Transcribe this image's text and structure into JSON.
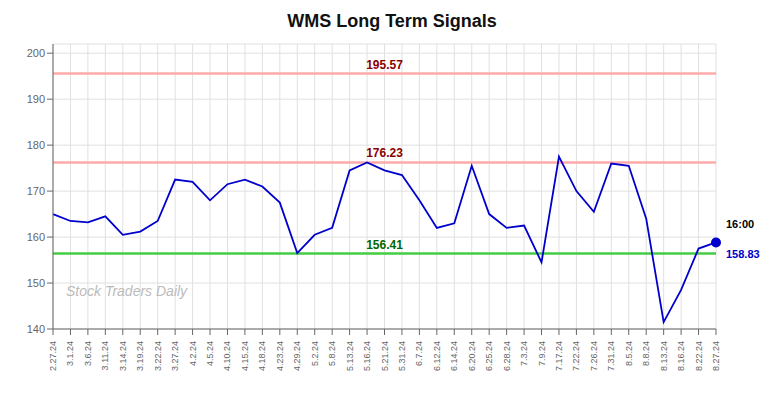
{
  "chart_data": {
    "type": "line",
    "title": "WMS Long Term Signals",
    "categories": [
      "2.27.24",
      "3.1.24",
      "3.6.24",
      "3.11.24",
      "3.14.24",
      "3.19.24",
      "3.22.24",
      "3.27.24",
      "4.2.24",
      "4.5.24",
      "4.10.24",
      "4.15.24",
      "4.18.24",
      "4.23.24",
      "4.29.24",
      "5.2.24",
      "5.8.24",
      "5.13.24",
      "5.16.24",
      "5.21.24",
      "5.31.24",
      "6.7.24",
      "6.12.24",
      "6.14.24",
      "6.20.24",
      "6.25.24",
      "6.28.24",
      "7.3.24",
      "7.9.24",
      "7.17.24",
      "7.22.24",
      "7.26.24",
      "7.31.24",
      "8.5.24",
      "8.8.24",
      "8.13.24",
      "8.16.24",
      "8.22.24",
      "8.27.24"
    ],
    "values": [
      165.0,
      163.5,
      163.2,
      164.5,
      160.5,
      161.2,
      163.5,
      172.5,
      172.0,
      168.0,
      171.5,
      172.5,
      171.0,
      167.5,
      156.5,
      160.5,
      162.0,
      174.5,
      176.23,
      174.5,
      173.5,
      168.0,
      162.0,
      163.0,
      175.5,
      165.0,
      162.0,
      162.5,
      154.5,
      177.5,
      170.0,
      165.5,
      176.0,
      175.5,
      164.0,
      141.5,
      148.5,
      157.5,
      158.83
    ],
    "color": "#0000cc",
    "ylim": [
      140,
      202
    ],
    "yticks": [
      140,
      150,
      160,
      170,
      180,
      190,
      200
    ],
    "grid": true,
    "reference_lines": [
      {
        "value": 195.57,
        "color": "#ffaaaa",
        "label_color": "#880000"
      },
      {
        "value": 176.23,
        "color": "#ffaaaa",
        "label_color": "#880000"
      },
      {
        "value": 156.41,
        "color": "#44cc44",
        "label_color": "#006600"
      }
    ],
    "last_point": {
      "value": 158.83,
      "label": "16:00",
      "label_color": "#000000"
    },
    "annotations": [
      {
        "text": "Stock Traders Daily",
        "color": "#bbbbbb"
      }
    ]
  }
}
